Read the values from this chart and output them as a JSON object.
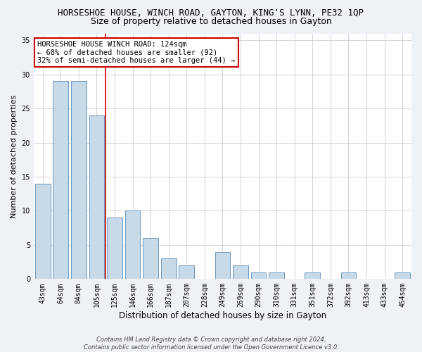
{
  "title": "HORSESHOE HOUSE, WINCH ROAD, GAYTON, KING'S LYNN, PE32 1QP",
  "subtitle": "Size of property relative to detached houses in Gayton",
  "xlabel": "Distribution of detached houses by size in Gayton",
  "ylabel": "Number of detached properties",
  "categories": [
    "43sqm",
    "64sqm",
    "84sqm",
    "105sqm",
    "125sqm",
    "146sqm",
    "166sqm",
    "187sqm",
    "207sqm",
    "228sqm",
    "249sqm",
    "269sqm",
    "290sqm",
    "310sqm",
    "331sqm",
    "351sqm",
    "372sqm",
    "392sqm",
    "413sqm",
    "433sqm",
    "454sqm"
  ],
  "values": [
    14,
    29,
    29,
    24,
    9,
    10,
    6,
    3,
    2,
    0,
    4,
    2,
    1,
    1,
    0,
    1,
    0,
    1,
    0,
    0,
    1
  ],
  "bar_color": "#c8d9e8",
  "bar_edge_color": "#6a9abf",
  "vline_x_idx": 4,
  "vline_color": "#cc0000",
  "ylim": [
    0,
    36
  ],
  "yticks": [
    0,
    5,
    10,
    15,
    20,
    25,
    30,
    35
  ],
  "annotation_title": "HORSESHOE HOUSE WINCH ROAD: 124sqm",
  "annotation_line1": "← 68% of detached houses are smaller (92)",
  "annotation_line2": "32% of semi-detached houses are larger (44) →",
  "footer1": "Contains HM Land Registry data © Crown copyright and database right 2024.",
  "footer2": "Contains public sector information licensed under the Open Government Licence v3.0.",
  "bg_color": "#eef2f7",
  "plot_bg_color": "#ffffff",
  "title_fontsize": 9,
  "subtitle_fontsize": 9,
  "tick_fontsize": 7,
  "ylabel_fontsize": 8,
  "xlabel_fontsize": 8.5,
  "annotation_fontsize": 7.5,
  "footer_fontsize": 6
}
